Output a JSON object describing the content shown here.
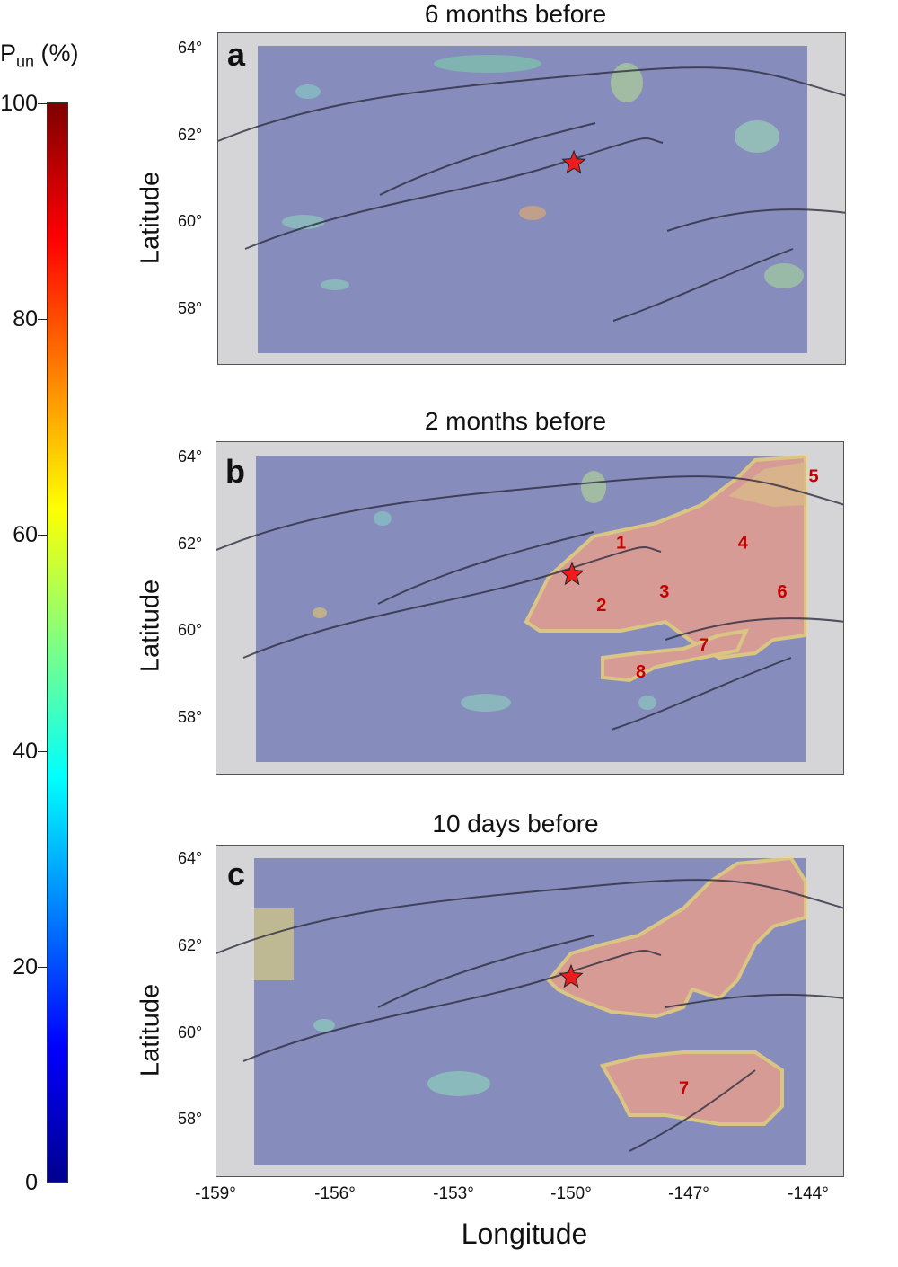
{
  "colorbar": {
    "title_main": "P",
    "title_sub": "un",
    "title_unit": " (%)",
    "ticks": [
      "0",
      "20",
      "40",
      "60",
      "80",
      "100"
    ],
    "range": [
      0,
      100
    ],
    "colormap": [
      "#00008f",
      "#0000ff",
      "#0080ff",
      "#00ffff",
      "#80ff80",
      "#ffff00",
      "#ff8000",
      "#ff0000",
      "#800000"
    ]
  },
  "axes": {
    "xlabel": "Longitude",
    "ylabel": "Latitude",
    "lon_ticks": [
      "-159°",
      "-156°",
      "-153°",
      "-150°",
      "-147°",
      "-144°"
    ],
    "lat_ticks": [
      "64°",
      "62°",
      "60°",
      "58°"
    ]
  },
  "chart_data": [
    {
      "type": "heatmap",
      "panel": "a",
      "title": "6 months before",
      "x_range": [
        -159,
        -143
      ],
      "y_range": [
        56.8,
        64.3
      ],
      "high_probability_regions": [],
      "region_labels": [],
      "epicenter": {
        "lon": -150.0,
        "lat": 61.35
      }
    },
    {
      "type": "heatmap",
      "panel": "b",
      "title": "2 months before",
      "x_range": [
        -159,
        -143
      ],
      "y_range": [
        56.8,
        64.3
      ],
      "high_probability_regions": [
        "1",
        "2",
        "3",
        "4",
        "5",
        "6",
        "7",
        "8"
      ],
      "region_labels": [
        {
          "text": "1",
          "lon": -148.7,
          "lat": 61.9
        },
        {
          "text": "2",
          "lon": -149.2,
          "lat": 60.5
        },
        {
          "text": "3",
          "lon": -147.6,
          "lat": 60.8
        },
        {
          "text": "4",
          "lon": -145.6,
          "lat": 61.9
        },
        {
          "text": "5",
          "lon": -143.8,
          "lat": 63.4
        },
        {
          "text": "6",
          "lon": -144.6,
          "lat": 60.8
        },
        {
          "text": "7",
          "lon": -146.6,
          "lat": 59.6
        },
        {
          "text": "8",
          "lon": -148.2,
          "lat": 59.0
        }
      ],
      "epicenter": {
        "lon": -150.0,
        "lat": 61.35
      }
    },
    {
      "type": "heatmap",
      "panel": "c",
      "title": "10 days before",
      "x_range": [
        -159,
        -143
      ],
      "y_range": [
        56.8,
        64.3
      ],
      "high_probability_regions": [
        "7"
      ],
      "region_labels": [
        {
          "text": "7",
          "lon": -147.1,
          "lat": 58.7
        }
      ],
      "epicenter": {
        "lon": -150.0,
        "lat": 61.35
      }
    }
  ]
}
